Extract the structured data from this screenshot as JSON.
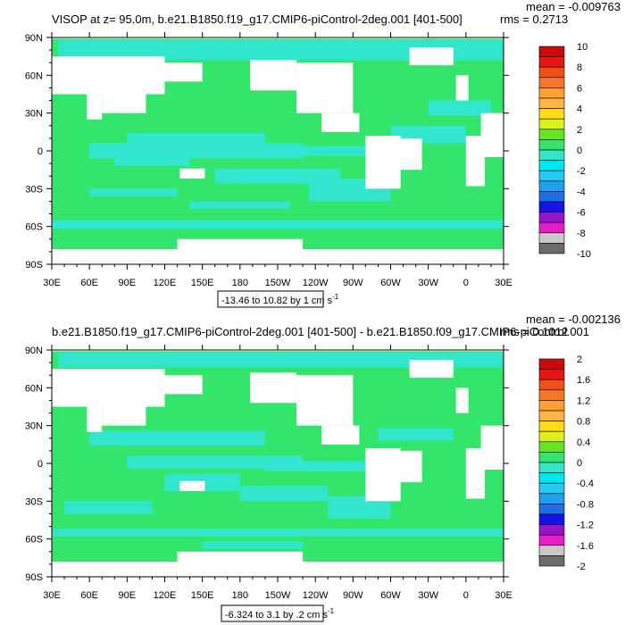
{
  "chart_data": [
    {
      "type": "heatmap",
      "title": "VISOP at z=  95.0m, b.e21.B1850.f19_g17.CMIP6-piControl-2deg.001 [401-500]",
      "stats": {
        "mean": "mean = -0.009763",
        "rms": "rms = 0.2713"
      },
      "range_label": {
        "text": "-13.46 to 10.82 by 1 cm s",
        "exp": "-1"
      },
      "xticks": [
        "30E",
        "60E",
        "90E",
        "120E",
        "150E",
        "180",
        "150W",
        "120W",
        "90W",
        "60W",
        "30W",
        "0",
        "30E"
      ],
      "yticks": [
        "90N",
        "60N",
        "30N",
        "0",
        "30S",
        "60S",
        "90S"
      ],
      "xlim": [
        30,
        390
      ],
      "ylim": [
        -90,
        90
      ],
      "colorbar": {
        "levels": [
          10,
          8,
          6,
          4,
          2,
          0,
          -2,
          -4,
          -6,
          -8,
          -10
        ],
        "labels": [
          "10",
          "8",
          "6",
          "4",
          "2",
          "0",
          "-2",
          "-4",
          "-6",
          "-8",
          "-10"
        ]
      }
    },
    {
      "type": "heatmap",
      "title": "b.e21.B1850.f19_g17.CMIP6-piControl-2deg.001 [401-500] - b.e21.B1850.f09_g17.CMIP6-piControl.001",
      "stats": {
        "mean": "mean = -0.002136",
        "rms": "rms = 0.1012"
      },
      "range_label": {
        "text": "-6.324 to 3.1 by .2 cm s",
        "exp": "-1"
      },
      "xticks": [
        "30E",
        "60E",
        "90E",
        "120E",
        "150E",
        "180",
        "150W",
        "120W",
        "90W",
        "60W",
        "30W",
        "0",
        "30E"
      ],
      "yticks": [
        "90N",
        "60N",
        "30N",
        "0",
        "30S",
        "60S",
        "90S"
      ],
      "xlim": [
        30,
        390
      ],
      "ylim": [
        -90,
        90
      ],
      "colorbar": {
        "levels": [
          2,
          1.6,
          1.2,
          0.8,
          0.4,
          0,
          -0.4,
          -0.8,
          -1.2,
          -1.6,
          -2
        ],
        "labels": [
          "2",
          "1.6",
          "1.2",
          "0.8",
          "0.4",
          "0",
          "-0.4",
          "-0.8",
          "-1.2",
          "-1.6",
          "-2"
        ]
      }
    }
  ],
  "colors": {
    "ocean_green": "#33e66b",
    "ocean_cyan": "#33e6d4",
    "land": "#ffffff",
    "palette": [
      "#6b6b6b",
      "#c8c8c8",
      "#e61ec8",
      "#9614c8",
      "#1414e6",
      "#1e6ee6",
      "#1ea0f0",
      "#28c8f5",
      "#00e6f0",
      "#33e6c8",
      "#33e66b",
      "#64e628",
      "#dcf01e",
      "#ffdc14",
      "#ffb446",
      "#ffa030",
      "#f57828",
      "#f05018",
      "#e61414",
      "#c80c0c"
    ]
  }
}
